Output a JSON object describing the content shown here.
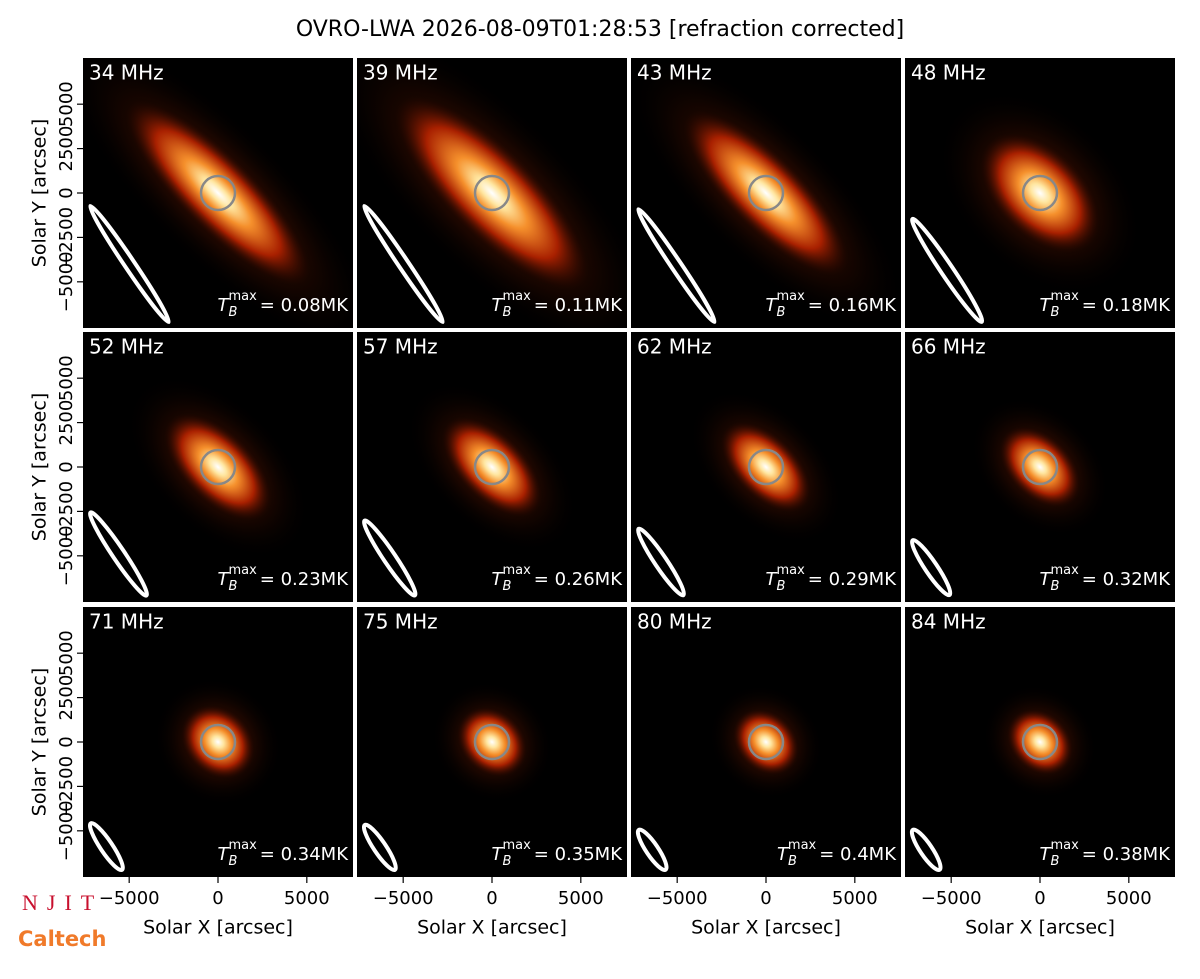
{
  "title": "OVRO-LWA 2026-08-09T01:28:53 [refraction corrected]",
  "logos": [
    "NJIT",
    "Caltech"
  ],
  "chart_data": [
    {
      "type": "image",
      "label": "34 MHz",
      "tb_symbol": "T",
      "tb_sub": "B",
      "tb_sup": "max",
      "tb_text": "= 0.08MK",
      "xlim": [
        -7600,
        7600
      ],
      "ylim": [
        -7600,
        7600
      ],
      "ylabel": "Solar Y [arcsec]",
      "yticks": [
        {
          "value": -5000,
          "label": "−5000"
        },
        {
          "value": -2500,
          "label": "−2500"
        },
        0,
        2500,
        5000
      ]
    },
    {
      "type": "image",
      "label": "39 MHz",
      "tb_symbol": "T",
      "tb_sub": "B",
      "tb_sup": "max",
      "tb_text": "= 0.11MK",
      "xlim": [
        -7600,
        7600
      ],
      "ylim": [
        -7600,
        7600
      ]
    },
    {
      "type": "image",
      "label": "43 MHz",
      "tb_symbol": "T",
      "tb_sub": "B",
      "tb_sup": "max",
      "tb_text": "= 0.16MK",
      "xlim": [
        -7600,
        7600
      ],
      "ylim": [
        -7600,
        7600
      ]
    },
    {
      "type": "image",
      "label": "48 MHz",
      "tb_symbol": "T",
      "tb_sub": "B",
      "tb_sup": "max",
      "tb_text": "= 0.18MK",
      "xlim": [
        -7600,
        7600
      ],
      "ylim": [
        -7600,
        7600
      ]
    },
    {
      "type": "image",
      "label": "52 MHz",
      "tb_symbol": "T",
      "tb_sub": "B",
      "tb_sup": "max",
      "tb_text": "= 0.23MK",
      "xlim": [
        -7600,
        7600
      ],
      "ylim": [
        -7600,
        7600
      ],
      "ylabel": "Solar Y [arcsec]",
      "yticks": [
        {
          "value": -5000,
          "label": "−5000"
        },
        {
          "value": -2500,
          "label": "−2500"
        },
        0,
        2500,
        5000
      ]
    },
    {
      "type": "image",
      "label": "57 MHz",
      "tb_symbol": "T",
      "tb_sub": "B",
      "tb_sup": "max",
      "tb_text": "= 0.26MK",
      "xlim": [
        -7600,
        7600
      ],
      "ylim": [
        -7600,
        7600
      ]
    },
    {
      "type": "image",
      "label": "62 MHz",
      "tb_symbol": "T",
      "tb_sub": "B",
      "tb_sup": "max",
      "tb_text": "= 0.29MK",
      "xlim": [
        -7600,
        7600
      ],
      "ylim": [
        -7600,
        7600
      ]
    },
    {
      "type": "image",
      "label": "66 MHz",
      "tb_symbol": "T",
      "tb_sub": "B",
      "tb_sup": "max",
      "tb_text": "= 0.32MK",
      "xlim": [
        -7600,
        7600
      ],
      "ylim": [
        -7600,
        7600
      ]
    },
    {
      "type": "image",
      "label": "71 MHz",
      "tb_symbol": "T",
      "tb_sub": "B",
      "tb_sup": "max",
      "tb_text": "= 0.34MK",
      "xlim": [
        -7600,
        7600
      ],
      "ylim": [
        -7600,
        7600
      ],
      "ylabel": "Solar Y [arcsec]",
      "yticks": [
        {
          "value": -5000,
          "label": "−5000"
        },
        {
          "value": -2500,
          "label": "−2500"
        },
        0,
        2500,
        5000
      ],
      "xlabel": "Solar X [arcsec]",
      "xticks": [
        {
          "value": -5000,
          "label": "−5000"
        },
        0,
        5000
      ]
    },
    {
      "type": "image",
      "label": "75 MHz",
      "tb_symbol": "T",
      "tb_sub": "B",
      "tb_sup": "max",
      "tb_text": "= 0.35MK",
      "xlim": [
        -7600,
        7600
      ],
      "ylim": [
        -7600,
        7600
      ],
      "xlabel": "Solar X [arcsec]",
      "xticks": [
        {
          "value": -5000,
          "label": "−5000"
        },
        0,
        5000
      ]
    },
    {
      "type": "image",
      "label": "80 MHz",
      "tb_symbol": "T",
      "tb_sub": "B",
      "tb_sup": "max",
      "tb_text": "= 0.4MK",
      "xlim": [
        -7600,
        7600
      ],
      "ylim": [
        -7600,
        7600
      ],
      "xlabel": "Solar X [arcsec]",
      "xticks": [
        {
          "value": -5000,
          "label": "−5000"
        },
        0,
        5000
      ]
    },
    {
      "type": "image",
      "label": "84 MHz",
      "tb_symbol": "T",
      "tb_sub": "B",
      "tb_sup": "max",
      "tb_text": "= 0.38MK",
      "xlim": [
        -7600,
        7600
      ],
      "ylim": [
        -7600,
        7600
      ],
      "xlabel": "Solar X [arcsec]",
      "xticks": [
        {
          "value": -5000,
          "label": "−5000"
        },
        0,
        5000
      ]
    }
  ]
}
